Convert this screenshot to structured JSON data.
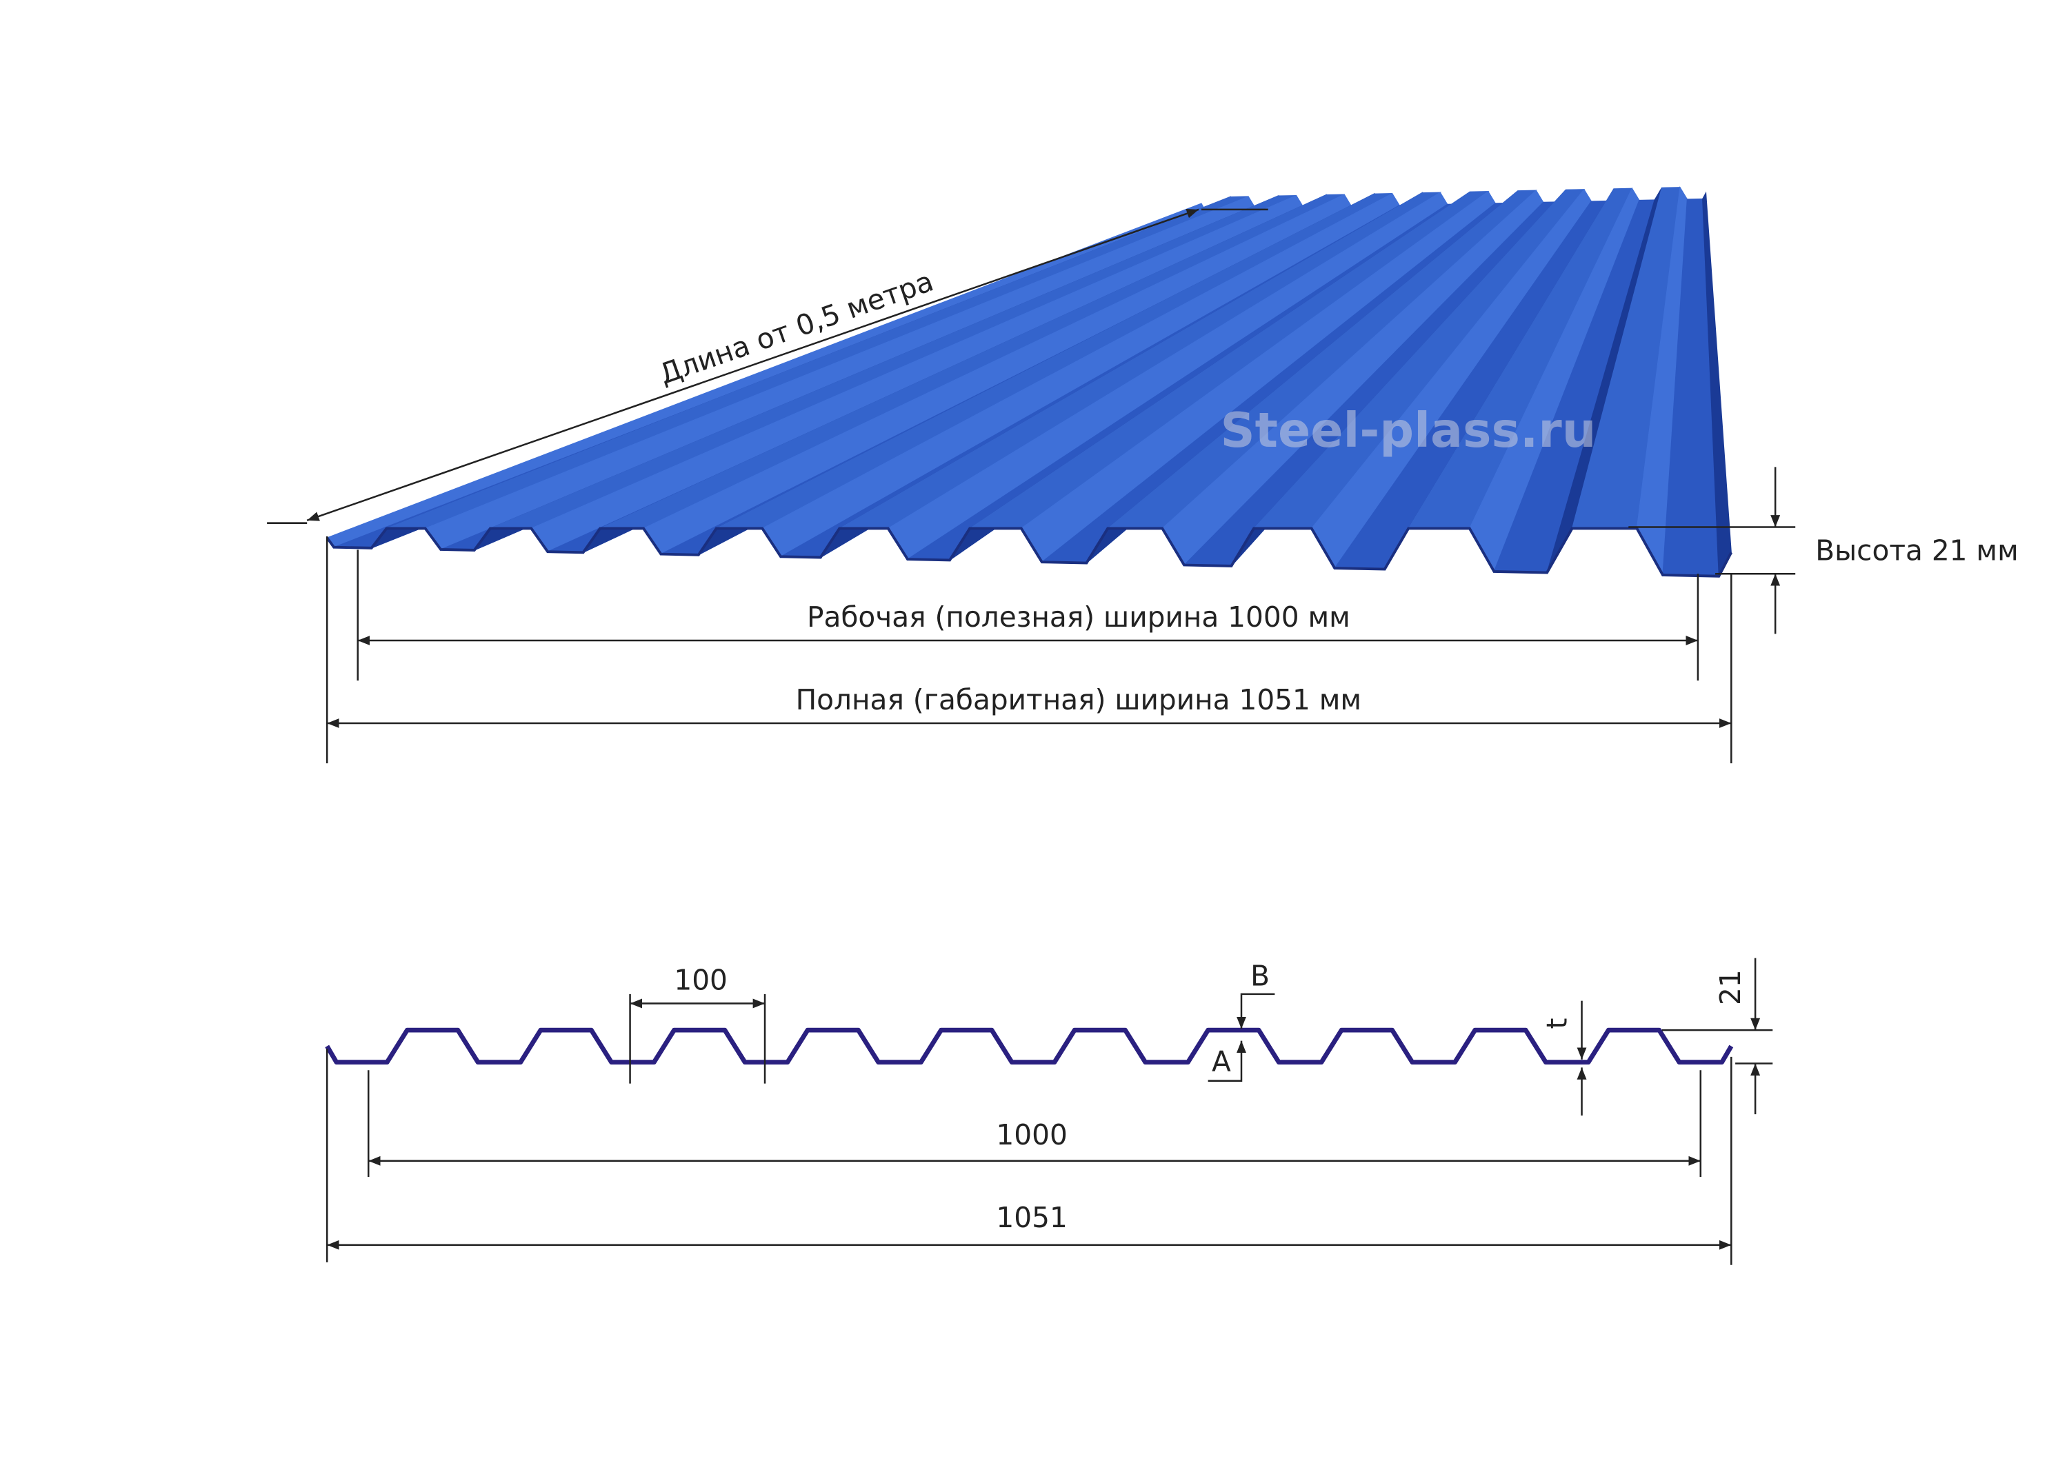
{
  "sheet_view": {
    "length_label": "Длина от 0,5 метра",
    "watermark": "Steel-plass.ru",
    "height_label": "Высота 21 мм",
    "working_width_label": "Рабочая (полезная) ширина 1000 мм",
    "full_width_label": "Полная (габаритная) ширина 1051 мм"
  },
  "profile_view": {
    "pitch_label": "100",
    "point_b": "B",
    "point_a": "A",
    "thickness_label": "t",
    "height_label": "21",
    "working_width_label": "1000",
    "full_width_label": "1051"
  }
}
